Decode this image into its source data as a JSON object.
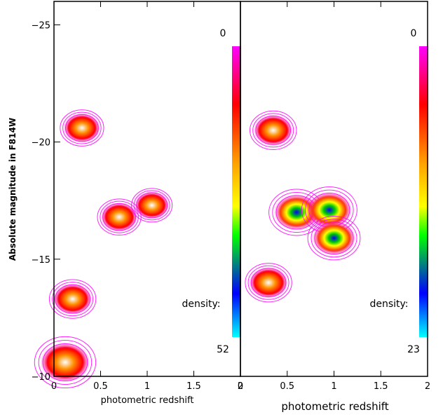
{
  "chart_data": [
    {
      "type": "contour",
      "panel": "left",
      "xlabel": "photometric redshift",
      "ylabel": "Absolute magnitude in F814W",
      "xlim": [
        0,
        2
      ],
      "ylim": [
        -10,
        -26
      ],
      "x_ticks": [
        0,
        0.5,
        1,
        1.5,
        2
      ],
      "y_ticks": [
        -25,
        -20,
        -15,
        -10
      ],
      "colorbar": {
        "top_label": "0",
        "density_label": "density:",
        "bottom_label": "52"
      },
      "density_blobs": [
        {
          "x": 0.12,
          "y": -10.6,
          "level": 0.85
        },
        {
          "x": 0.2,
          "y": -13.3,
          "level": 0.6
        },
        {
          "x": 0.3,
          "y": -20.6,
          "level": 0.55
        },
        {
          "x": 0.7,
          "y": -16.8,
          "level": 0.55
        },
        {
          "x": 1.05,
          "y": -17.3,
          "level": 0.5
        }
      ]
    },
    {
      "type": "contour",
      "panel": "right",
      "xlabel": "photometric redshift",
      "xlim": [
        0,
        2
      ],
      "ylim": [
        -10,
        -26
      ],
      "x_ticks": [
        0,
        0.5,
        1,
        1.5,
        2
      ],
      "colorbar": {
        "top_label": "0",
        "density_label": "density:",
        "bottom_label": "23"
      },
      "density_blobs": [
        {
          "x": 0.35,
          "y": -20.5,
          "level": 0.6
        },
        {
          "x": 0.6,
          "y": -17.0,
          "level": 0.75
        },
        {
          "x": 0.95,
          "y": -17.1,
          "level": 0.75
        },
        {
          "x": 1.0,
          "y": -15.9,
          "level": 0.7
        },
        {
          "x": 0.3,
          "y": -14.0,
          "level": 0.6
        }
      ]
    }
  ]
}
